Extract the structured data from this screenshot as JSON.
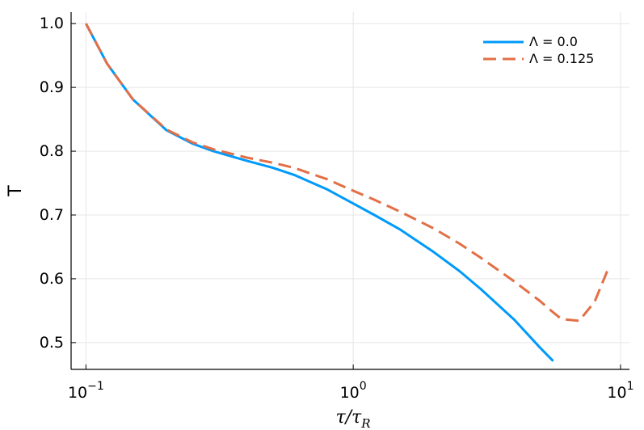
{
  "chart_data": {
    "type": "line",
    "title": "",
    "xlabel_main": "τ/τ",
    "xlabel_sub": "R",
    "ylabel": "T",
    "xscale": "log10",
    "xlim": [
      0.088,
      10.8
    ],
    "ylim": [
      0.458,
      1.018
    ],
    "grid": true,
    "legend_position": "top-right",
    "x_ticks": [
      {
        "value": 0.1,
        "base": "10",
        "exp": "−1"
      },
      {
        "value": 1,
        "base": "10",
        "exp": "0"
      },
      {
        "value": 10,
        "base": "10",
        "exp": "1"
      }
    ],
    "y_ticks": [
      {
        "value": 0.5,
        "label": "0.5"
      },
      {
        "value": 0.6,
        "label": "0.6"
      },
      {
        "value": 0.7,
        "label": "0.7"
      },
      {
        "value": 0.8,
        "label": "0.8"
      },
      {
        "value": 0.9,
        "label": "0.9"
      },
      {
        "value": 1.0,
        "label": "1.0"
      }
    ],
    "series": [
      {
        "name": "Λ = 0.0",
        "color": "#009AFA",
        "dash": "solid",
        "x": [
          0.1,
          0.12,
          0.15,
          0.2,
          0.25,
          0.3,
          0.4,
          0.5,
          0.6,
          0.8,
          1.0,
          1.2,
          1.5,
          2.0,
          2.5,
          3.0,
          4.0,
          5.0,
          5.6
        ],
        "y": [
          1.0,
          0.937,
          0.881,
          0.833,
          0.812,
          0.8,
          0.785,
          0.774,
          0.763,
          0.74,
          0.718,
          0.7,
          0.677,
          0.642,
          0.612,
          0.584,
          0.536,
          0.492,
          0.471
        ]
      },
      {
        "name": "Λ = 0.125",
        "color": "#E26F46",
        "dash": "dashed",
        "x": [
          0.1,
          0.12,
          0.15,
          0.2,
          0.25,
          0.3,
          0.4,
          0.5,
          0.6,
          0.8,
          1.0,
          1.2,
          1.5,
          2.0,
          2.5,
          3.0,
          4.0,
          5.0,
          5.5,
          6.0,
          7.0,
          8.0,
          9.0
        ],
        "y": [
          1.0,
          0.937,
          0.881,
          0.834,
          0.814,
          0.803,
          0.79,
          0.782,
          0.774,
          0.756,
          0.738,
          0.724,
          0.705,
          0.679,
          0.655,
          0.633,
          0.596,
          0.565,
          0.55,
          0.537,
          0.534,
          0.564,
          0.616
        ]
      }
    ]
  }
}
